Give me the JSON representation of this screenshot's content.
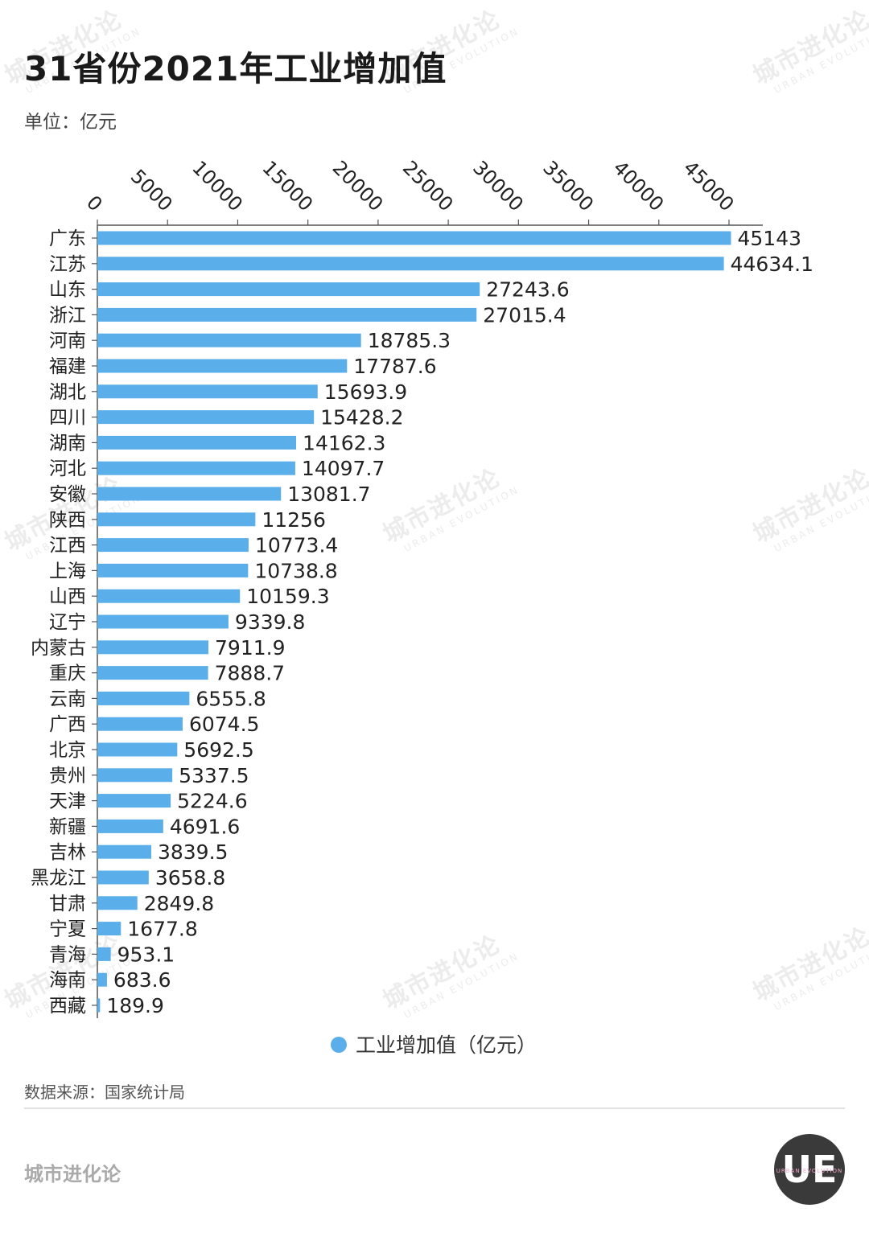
{
  "title": "31省份2021年工业增加值",
  "unit_label": "单位：亿元",
  "source_label": "数据来源：国家统计局",
  "brand": "城市进化论",
  "watermark": {
    "cn": "城市进化论",
    "en": "URBAN EVOLUTION"
  },
  "logo": {
    "letters": "UE",
    "text": "URBAN EVOLUTION"
  },
  "colors": {
    "bar": "#5aafea",
    "axis": "#555555",
    "label": "#222222"
  },
  "chart_data": {
    "type": "bar",
    "orientation": "horizontal",
    "xlim": [
      0,
      45000
    ],
    "x_ticks": [
      0,
      5000,
      10000,
      15000,
      20000,
      25000,
      30000,
      35000,
      40000,
      45000
    ],
    "x_axis_position": "top",
    "grid": false,
    "legend": {
      "position": "bottom",
      "entries": [
        "工业增加值（亿元）"
      ]
    },
    "categories": [
      "广东",
      "江苏",
      "山东",
      "浙江",
      "河南",
      "福建",
      "湖北",
      "四川",
      "湖南",
      "河北",
      "安徽",
      "陕西",
      "江西",
      "上海",
      "山西",
      "辽宁",
      "内蒙古",
      "重庆",
      "云南",
      "广西",
      "北京",
      "贵州",
      "天津",
      "新疆",
      "吉林",
      "黑龙江",
      "甘肃",
      "宁夏",
      "青海",
      "海南",
      "西藏"
    ],
    "values": [
      45143,
      44634.1,
      27243.6,
      27015.4,
      18785.3,
      17787.6,
      15693.9,
      15428.2,
      14162.3,
      14097.7,
      13081.7,
      11256,
      10773.4,
      10738.8,
      10159.3,
      9339.8,
      7911.9,
      7888.7,
      6555.8,
      6074.5,
      5692.5,
      5337.5,
      5224.6,
      4691.6,
      3839.5,
      3658.8,
      2849.8,
      1677.8,
      953.1,
      683.6,
      189.9
    ],
    "data_labels": [
      "45143",
      "44634.1",
      "27243.6",
      "27015.4",
      "18785.3",
      "17787.6",
      "15693.9",
      "15428.2",
      "14162.3",
      "14097.7",
      "13081.7",
      "11256",
      "10773.4",
      "10738.8",
      "10159.3",
      "9339.8",
      "7911.9",
      "7888.7",
      "6555.8",
      "6074.5",
      "5692.5",
      "5337.5",
      "5224.6",
      "4691.6",
      "3839.5",
      "3658.8",
      "2849.8",
      "1677.8",
      "953.1",
      "683.6",
      "189.9"
    ],
    "series": [
      {
        "name": "工业增加值（亿元）"
      }
    ]
  }
}
